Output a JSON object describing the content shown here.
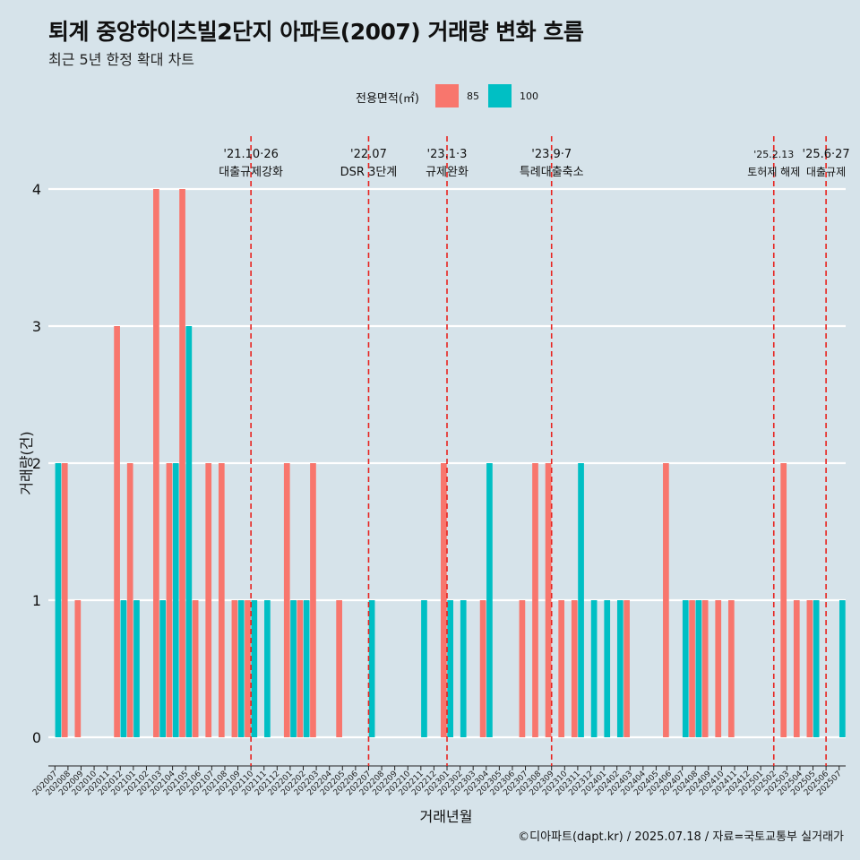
{
  "header": {
    "title": "퇴계 중앙하이츠빌2단지 아파트(2007) 거래량 변화 흐름",
    "subtitle": "최근 5년 한정 확대 차트"
  },
  "legend": {
    "title": "전용면적(㎡)",
    "items": [
      {
        "label": "85",
        "color": "#f8766d"
      },
      {
        "label": "100",
        "color": "#00bfc4"
      }
    ]
  },
  "caption": "©디아파트(dapt.kr) / 2025.07.18 / 자료=국토교통부 실거래가",
  "chart_data": {
    "type": "bar",
    "title": "퇴계 중앙하이츠빌2단지 아파트(2007) 거래량 변화 흐름",
    "subtitle": "최근 5년 한정 확대 차트",
    "xlabel": "거래년월",
    "ylabel": "거래량(건)",
    "ylim": [
      0,
      4
    ],
    "yticks": [
      0,
      1,
      2,
      3,
      4
    ],
    "grid": true,
    "legend_position": "top",
    "categories": [
      "202007",
      "202008",
      "202009",
      "202010",
      "202011",
      "202012",
      "202101",
      "202102",
      "202103",
      "202104",
      "202105",
      "202106",
      "202107",
      "202108",
      "202109",
      "202110",
      "202111",
      "202112",
      "202201",
      "202202",
      "202203",
      "202204",
      "202205",
      "202206",
      "202207",
      "202208",
      "202209",
      "202210",
      "202211",
      "202212",
      "202301",
      "202302",
      "202303",
      "202304",
      "202305",
      "202306",
      "202307",
      "202308",
      "202309",
      "202310",
      "202311",
      "202312",
      "202401",
      "202402",
      "202403",
      "202404",
      "202405",
      "202406",
      "202407",
      "202408",
      "202409",
      "202410",
      "202411",
      "202412",
      "202501",
      "202502",
      "202503",
      "202504",
      "202505",
      "202506",
      "202507"
    ],
    "series": [
      {
        "name": "85",
        "color": "#f8766d",
        "values": [
          0,
          2,
          1,
          0,
          0,
          3,
          2,
          0,
          4,
          2,
          4,
          1,
          2,
          2,
          1,
          1,
          0,
          0,
          2,
          1,
          2,
          0,
          1,
          0,
          0,
          0,
          0,
          0,
          0,
          0,
          2,
          0,
          0,
          1,
          0,
          0,
          1,
          2,
          2,
          1,
          1,
          0,
          0,
          0,
          1,
          0,
          0,
          2,
          0,
          1,
          1,
          1,
          1,
          0,
          0,
          0,
          2,
          1,
          1,
          0,
          0
        ]
      },
      {
        "name": "100",
        "color": "#00bfc4",
        "values": [
          2,
          0,
          0,
          0,
          0,
          1,
          1,
          0,
          1,
          2,
          3,
          0,
          0,
          0,
          1,
          1,
          1,
          0,
          1,
          1,
          0,
          0,
          0,
          0,
          1,
          0,
          0,
          0,
          1,
          0,
          1,
          1,
          0,
          2,
          0,
          0,
          0,
          0,
          0,
          0,
          2,
          1,
          1,
          1,
          0,
          0,
          0,
          0,
          1,
          1,
          0,
          0,
          0,
          0,
          0,
          0,
          0,
          0,
          1,
          0,
          1
        ]
      }
    ],
    "events": [
      {
        "x": "202110",
        "date": "'21.10·26",
        "label": "대출규제강화"
      },
      {
        "x": "202207",
        "date": "'22.07",
        "label": "DSR 3단계"
      },
      {
        "x": "202301",
        "date": "'23.1·3",
        "label": "규제완화"
      },
      {
        "x": "202309",
        "date": "'23.9·7",
        "label": "특례대출축소"
      },
      {
        "x": "202502",
        "date": "'25.2.13",
        "label": "토허제 해제"
      },
      {
        "x": "202506",
        "date": "'25.6·27",
        "label": "대출규제"
      }
    ]
  }
}
